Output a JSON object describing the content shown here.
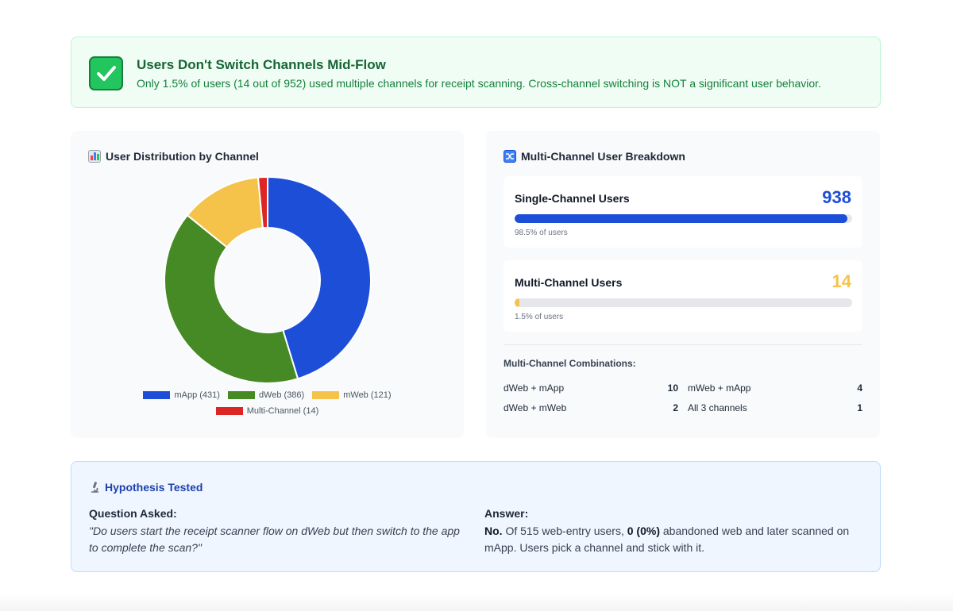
{
  "banner": {
    "icon": "check-mark-icon",
    "title": "Users Don't Switch Channels Mid-Flow",
    "text": "Only 1.5% of users (14 out of 952) used multiple channels for receipt scanning. Cross-channel switching is NOT a significant user behavior.",
    "color": "#166534"
  },
  "distribution": {
    "icon": "bar-chart-icon",
    "title": "User Distribution by Channel"
  },
  "chart_data": {
    "type": "pie",
    "donut": true,
    "categories": [
      "mApp",
      "dWeb",
      "mWeb",
      "Multi-Channel"
    ],
    "values": [
      431,
      386,
      121,
      14
    ],
    "colors": [
      "#1d4ed8",
      "#468a26",
      "#f5c34a",
      "#dc2626"
    ],
    "legend": [
      "mApp (431)",
      "dWeb (386)",
      "mWeb (121)",
      "Multi-Channel (14)"
    ],
    "legend_position": "bottom"
  },
  "breakdown": {
    "icon": "shuffle-icon",
    "title": "Multi-Channel User Breakdown",
    "single": {
      "label": "Single-Channel Users",
      "value": "938",
      "sub": "98.5% of users",
      "percent": 98.5,
      "color": "#1d4ed8"
    },
    "multi": {
      "label": "Multi-Channel Users",
      "value": "14",
      "sub": "1.5% of users",
      "percent": 1.5,
      "color": "#f5c34a"
    },
    "combinations_title": "Multi-Channel Combinations:",
    "combinations": [
      {
        "label": "dWeb + mApp",
        "count": "10"
      },
      {
        "label": "mWeb + mApp",
        "count": "4"
      },
      {
        "label": "dWeb + mWeb",
        "count": "2"
      },
      {
        "label": "All 3 channels",
        "count": "1"
      }
    ]
  },
  "hypothesis": {
    "icon": "microscope-icon",
    "title": "Hypothesis Tested",
    "question_label": "Question Asked:",
    "question": "\"Do users start the receipt scanner flow on dWeb but then switch to the app to complete the scan?\"",
    "answer_label": "Answer:",
    "answer_lead": "No.",
    "answer_part1": " Of 515 web-entry users, ",
    "answer_bold": "0 (0%)",
    "answer_part2": " abandoned web and later scanned on mApp. Users pick a channel and stick with it."
  }
}
